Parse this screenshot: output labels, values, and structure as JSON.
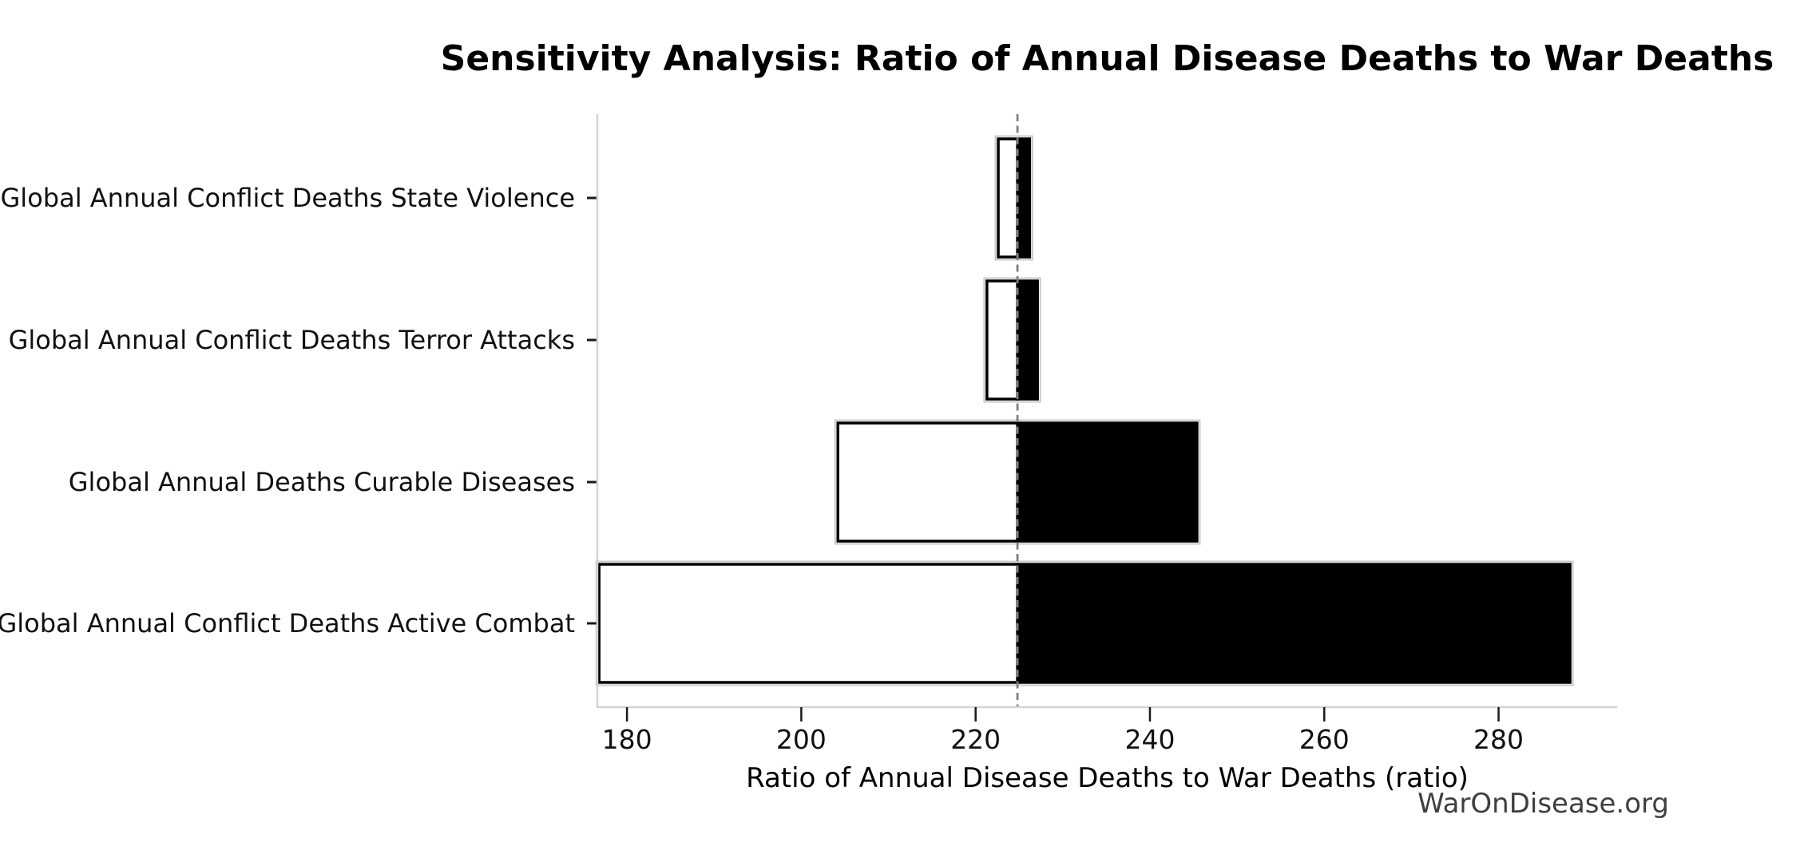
{
  "title": "Sensitivity Analysis: Ratio of Annual Disease Deaths to War Deaths",
  "watermark": "WarOnDisease.org",
  "chart_data": {
    "type": "bar",
    "subtype": "tornado-sensitivity",
    "orientation": "horizontal",
    "title": "Sensitivity Analysis: Ratio of Annual Disease Deaths to War Deaths",
    "xlabel": "Ratio of Annual Disease Deaths to War Deaths (ratio)",
    "ylabel": "",
    "xlim": [
      176.6,
      293.6
    ],
    "xticks": [
      180,
      200,
      220,
      240,
      260,
      280
    ],
    "baseline": 224.8,
    "grid": false,
    "legend": false,
    "categories": [
      "Global Annual Conflict Deaths State Violence",
      "Global Annual Conflict Deaths Terror Attacks",
      "Global Annual Deaths Curable Diseases",
      "Global Annual Conflict Deaths Active Combat"
    ],
    "series": [
      {
        "name": "low",
        "fill": "#ffffff",
        "values": [
          222.6,
          221.3,
          204.2,
          176.8
        ]
      },
      {
        "name": "high",
        "fill": "#000000",
        "values": [
          226.2,
          227.1,
          245.4,
          288.2
        ]
      }
    ],
    "colors": {
      "bar_edge": "#000000",
      "bar_halo": "#c9c9c9",
      "spine": "#d4d4d4",
      "tick": "#1a1a1a",
      "baseline": "#7f7f7f",
      "text": "#000000",
      "watermark": "#3f3f3f"
    }
  }
}
